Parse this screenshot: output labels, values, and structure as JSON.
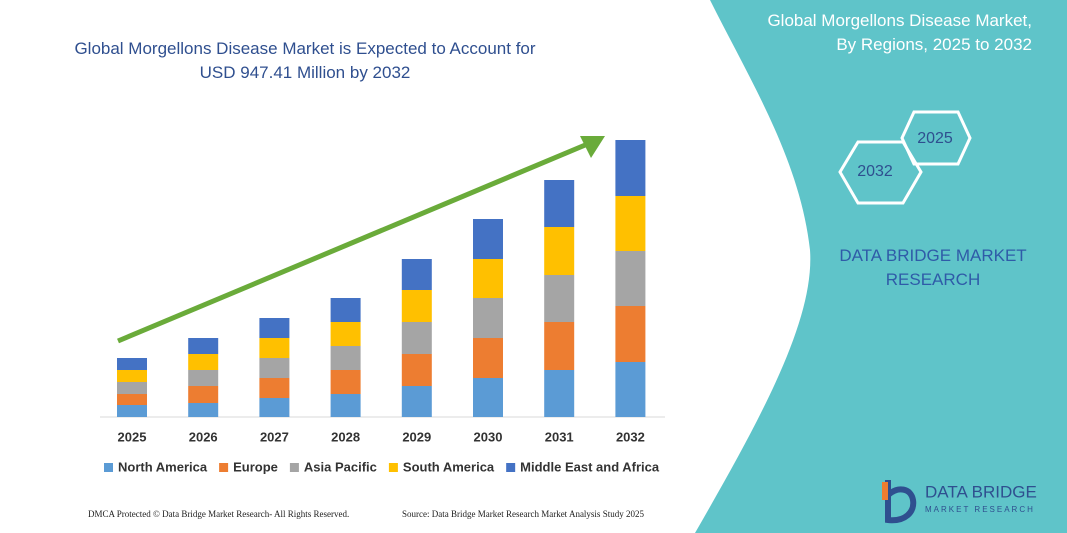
{
  "chart_data": {
    "type": "bar",
    "stacked": true,
    "title": "Global Morgellons Disease Market is Expected to Account for USD 947.41 Million by 2032",
    "categories": [
      "2025",
      "2026",
      "2027",
      "2028",
      "2029",
      "2030",
      "2031",
      "2032"
    ],
    "series": [
      {
        "name": "North America",
        "color": "#5b9bd5",
        "values": [
          12,
          14,
          19,
          23,
          31,
          39,
          47,
          55
        ]
      },
      {
        "name": "Europe",
        "color": "#ed7d31",
        "values": [
          11,
          17,
          20,
          24,
          32,
          40,
          48,
          56
        ]
      },
      {
        "name": "Asia Pacific",
        "color": "#a5a5a5",
        "values": [
          12,
          16,
          20,
          24,
          32,
          40,
          47,
          55
        ]
      },
      {
        "name": "South America",
        "color": "#ffc000",
        "values": [
          12,
          16,
          20,
          24,
          32,
          39,
          48,
          55
        ]
      },
      {
        "name": "Middle East and Africa",
        "color": "#4472c4",
        "values": [
          12,
          16,
          20,
          24,
          31,
          40,
          47,
          56
        ]
      }
    ]
  },
  "panel": {
    "title": "Global Morgellons Disease Market, By Regions, 2025 to 2032",
    "hexagons": [
      "2025",
      "2032"
    ],
    "brand": "DATA BRIDGE MARKET RESEARCH"
  },
  "logo": {
    "name": "DATA BRIDGE",
    "tagline": "MARKET RESEARCH"
  },
  "footer": {
    "left": "DMCA Protected © Data Bridge Market Research- All Rights Reserved.",
    "right": "Source: Data Bridge Market Research Market Analysis Study 2025"
  }
}
